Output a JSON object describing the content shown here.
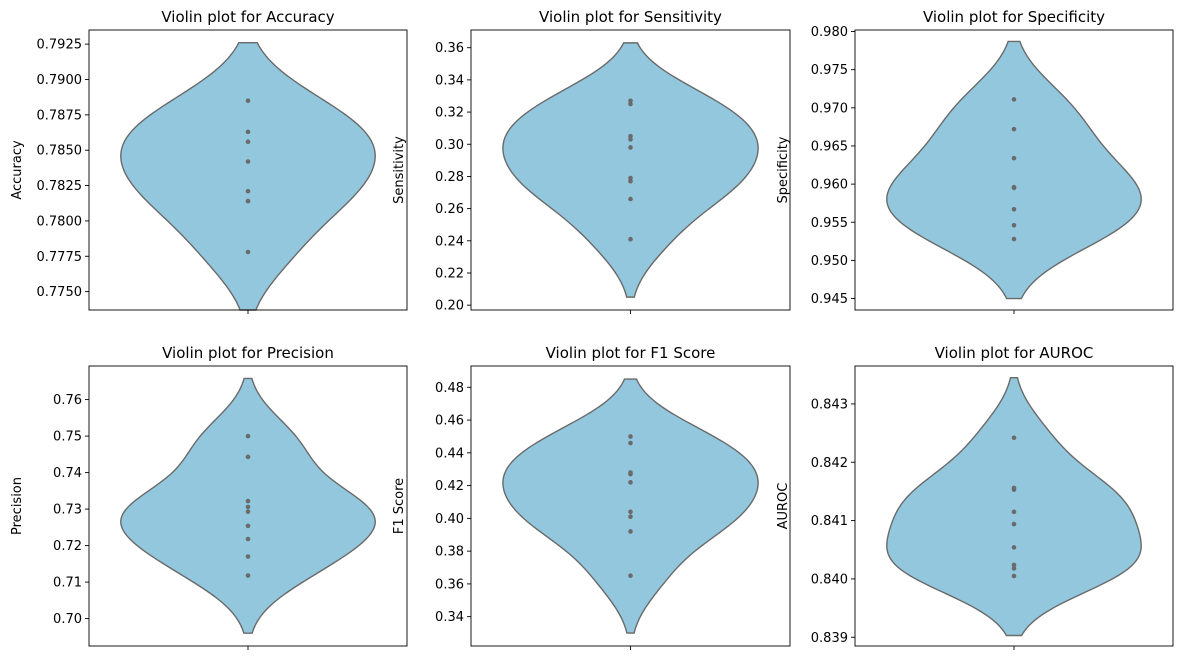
{
  "colors": {
    "violin_fill": "#92c7de",
    "violin_edge": "#6a6a6a",
    "point": "#6a6a6a",
    "axes": "#000000",
    "background": "#ffffff"
  },
  "chart_data": [
    {
      "type": "violin",
      "title": "Violin plot for Accuracy",
      "ylabel": "Accuracy",
      "xlabel": "",
      "ylim": [
        0.7737,
        0.7935
      ],
      "yticks": [
        0.775,
        0.7775,
        0.78,
        0.7825,
        0.785,
        0.7875,
        0.79,
        0.7925
      ],
      "ytick_labels": [
        "0.7750",
        "0.7775",
        "0.7800",
        "0.7825",
        "0.7850",
        "0.7875",
        "0.7900",
        "0.7925"
      ],
      "values": [
        0.7885,
        0.7863,
        0.7856,
        0.7842,
        0.7821,
        0.7814,
        0.7778
      ],
      "violin_range": [
        0.7737,
        0.7926
      ],
      "grid": false
    },
    {
      "type": "violin",
      "title": "Violin plot for Sensitivity",
      "ylabel": "Sensitivity",
      "xlabel": "",
      "ylim": [
        0.197,
        0.371
      ],
      "yticks": [
        0.2,
        0.22,
        0.24,
        0.26,
        0.28,
        0.3,
        0.32,
        0.34,
        0.36
      ],
      "ytick_labels": [
        "0.20",
        "0.22",
        "0.24",
        "0.26",
        "0.28",
        "0.30",
        "0.32",
        "0.34",
        "0.36"
      ],
      "values": [
        0.327,
        0.325,
        0.305,
        0.303,
        0.298,
        0.279,
        0.277,
        0.266,
        0.241
      ],
      "violin_range": [
        0.205,
        0.363
      ],
      "grid": false
    },
    {
      "type": "violin",
      "title": "Violin plot for Specificity",
      "ylabel": "Specificity",
      "xlabel": "",
      "ylim": [
        0.9435,
        0.9802
      ],
      "yticks": [
        0.945,
        0.95,
        0.955,
        0.96,
        0.965,
        0.97,
        0.975,
        0.98
      ],
      "ytick_labels": [
        "0.945",
        "0.950",
        "0.955",
        "0.960",
        "0.965",
        "0.970",
        "0.975",
        "0.980"
      ],
      "values": [
        0.9711,
        0.9672,
        0.9634,
        0.9596,
        0.9595,
        0.9567,
        0.9546,
        0.9528
      ],
      "violin_range": [
        0.945,
        0.9787
      ],
      "grid": false
    },
    {
      "type": "violin",
      "title": "Violin plot for Precision",
      "ylabel": "Precision",
      "xlabel": "",
      "ylim": [
        0.6925,
        0.7692
      ],
      "yticks": [
        0.7,
        0.71,
        0.72,
        0.73,
        0.74,
        0.75,
        0.76
      ],
      "ytick_labels": [
        "0.70",
        "0.71",
        "0.72",
        "0.73",
        "0.74",
        "0.75",
        "0.76"
      ],
      "values": [
        0.75,
        0.7443,
        0.7322,
        0.7306,
        0.7293,
        0.7254,
        0.7218,
        0.717,
        0.7118
      ],
      "violin_range": [
        0.696,
        0.7658
      ],
      "grid": false
    },
    {
      "type": "violin",
      "title": "Violin plot for F1 Score",
      "ylabel": "F1 Score",
      "xlabel": "",
      "ylim": [
        0.3221,
        0.493
      ],
      "yticks": [
        0.34,
        0.36,
        0.38,
        0.4,
        0.42,
        0.44,
        0.46,
        0.48
      ],
      "ytick_labels": [
        "0.34",
        "0.36",
        "0.38",
        "0.40",
        "0.42",
        "0.44",
        "0.46",
        "0.48"
      ],
      "values": [
        0.45,
        0.446,
        0.428,
        0.427,
        0.422,
        0.404,
        0.401,
        0.392,
        0.365
      ],
      "violin_range": [
        0.33,
        0.485
      ],
      "grid": false
    },
    {
      "type": "violin",
      "title": "Violin plot for AUROC",
      "ylabel": "AUROC",
      "xlabel": "",
      "ylim": [
        0.83885,
        0.84365
      ],
      "yticks": [
        0.839,
        0.84,
        0.841,
        0.842,
        0.843
      ],
      "ytick_labels": [
        "0.839",
        "0.840",
        "0.841",
        "0.842",
        "0.843"
      ],
      "values": [
        0.84242,
        0.84156,
        0.84153,
        0.84115,
        0.84094,
        0.84054,
        0.84024,
        0.84018,
        0.84005
      ],
      "violin_range": [
        0.83903,
        0.84345
      ],
      "grid": false
    }
  ]
}
